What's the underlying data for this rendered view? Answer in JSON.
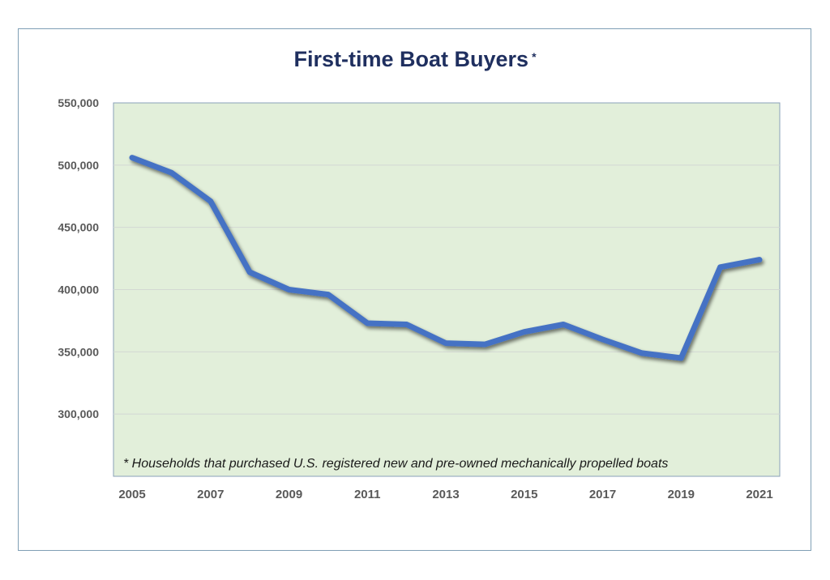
{
  "chart_data": {
    "type": "line",
    "title": "First-time Boat Buyers",
    "title_marker": "*",
    "footnote": "* Households that purchased U.S. registered new and pre-owned mechanically propelled boats",
    "xlabel": "",
    "ylabel": "",
    "x": [
      2005,
      2006,
      2007,
      2008,
      2009,
      2010,
      2011,
      2012,
      2013,
      2014,
      2015,
      2016,
      2017,
      2018,
      2019,
      2020,
      2021
    ],
    "x_tick_labels": [
      "2005",
      "2007",
      "2009",
      "2011",
      "2013",
      "2015",
      "2017",
      "2019",
      "2021"
    ],
    "y_tick_labels": [
      "550,000",
      "500,000",
      "450,000",
      "400,000",
      "350,000",
      "300,000"
    ],
    "ylim": [
      250000,
      550000
    ],
    "series": [
      {
        "values": [
          506000,
          494000,
          471000,
          414000,
          400000,
          396000,
          373000,
          372000,
          357000,
          356000,
          366000,
          372000,
          360000,
          349000,
          345000,
          418000,
          424000
        ],
        "color": "#4472c4"
      }
    ],
    "grid": true,
    "plot_background": "#e2efda",
    "title_color": "#1f2f5f"
  }
}
